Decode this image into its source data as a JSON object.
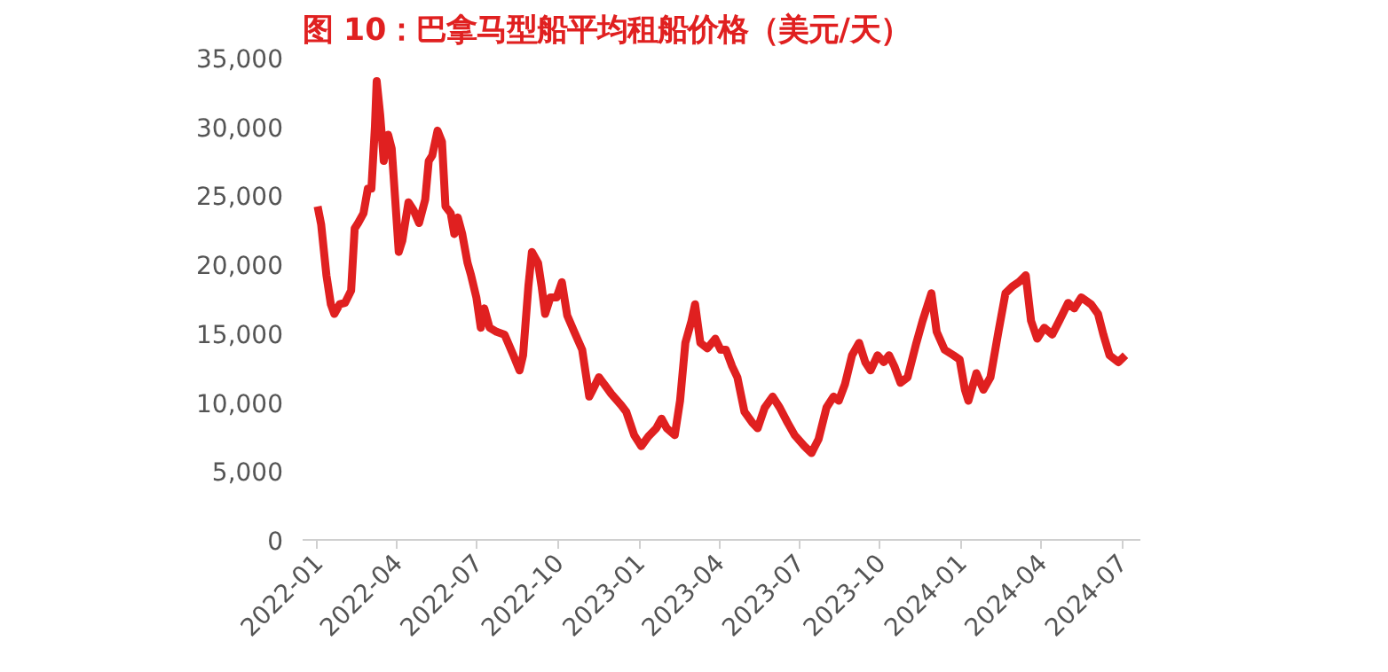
{
  "chart_data": {
    "type": "line",
    "title": "图 10：巴拿马型船平均租船价格（美元/天）",
    "x": [
      "2022-01-01",
      "2022-01-05",
      "2022-01-11",
      "2022-01-16",
      "2022-01-20",
      "2022-01-26",
      "2022-02-01",
      "2022-02-08",
      "2022-02-12",
      "2022-02-16",
      "2022-02-22",
      "2022-02-27",
      "2022-03-03",
      "2022-03-07",
      "2022-03-09",
      "2022-03-13",
      "2022-03-17",
      "2022-03-22",
      "2022-03-26",
      "2022-03-30",
      "2022-04-03",
      "2022-04-07",
      "2022-04-14",
      "2022-04-20",
      "2022-04-26",
      "2022-05-03",
      "2022-05-07",
      "2022-05-11",
      "2022-05-17",
      "2022-05-22",
      "2022-05-26",
      "2022-06-01",
      "2022-06-05",
      "2022-06-09",
      "2022-06-14",
      "2022-06-20",
      "2022-06-24",
      "2022-06-30",
      "2022-07-05",
      "2022-07-09",
      "2022-07-15",
      "2022-07-23",
      "2022-08-01",
      "2022-08-11",
      "2022-08-18",
      "2022-08-22",
      "2022-08-28",
      "2022-09-01",
      "2022-09-08",
      "2022-09-12",
      "2022-09-16",
      "2022-09-22",
      "2022-09-29",
      "2022-10-05",
      "2022-10-11",
      "2022-10-19",
      "2022-10-28",
      "2022-11-01",
      "2022-11-05",
      "2022-11-09",
      "2022-11-16",
      "2022-11-22",
      "2022-11-30",
      "2022-12-11",
      "2022-12-17",
      "2022-12-26",
      "2023-01-03",
      "2023-01-11",
      "2023-01-20",
      "2023-01-26",
      "2023-02-01",
      "2023-02-10",
      "2023-02-16",
      "2023-02-22",
      "2023-03-01",
      "2023-03-05",
      "2023-03-11",
      "2023-03-19",
      "2023-03-28",
      "2023-04-03",
      "2023-04-09",
      "2023-04-16",
      "2023-04-22",
      "2023-04-30",
      "2023-05-09",
      "2023-05-15",
      "2023-05-23",
      "2023-06-01",
      "2023-06-09",
      "2023-06-18",
      "2023-06-26",
      "2023-07-07",
      "2023-07-15",
      "2023-07-23",
      "2023-08-01",
      "2023-08-09",
      "2023-08-15",
      "2023-08-22",
      "2023-08-30",
      "2023-09-07",
      "2023-09-14",
      "2023-09-20",
      "2023-09-28",
      "2023-10-05",
      "2023-10-11",
      "2023-10-17",
      "2023-10-24",
      "2023-11-01",
      "2023-11-11",
      "2023-11-18",
      "2023-11-28",
      "2023-12-04",
      "2023-12-13",
      "2023-12-23",
      "2023-12-30",
      "2024-01-05",
      "2024-01-09",
      "2024-01-18",
      "2024-01-26",
      "2024-02-03",
      "2024-02-12",
      "2024-02-20",
      "2024-02-28",
      "2024-03-06",
      "2024-03-14",
      "2024-03-20",
      "2024-03-27",
      "2024-04-04",
      "2024-04-13",
      "2024-04-21",
      "2024-05-01",
      "2024-05-08",
      "2024-05-16",
      "2024-05-27",
      "2024-06-04",
      "2024-06-10",
      "2024-06-17",
      "2024-06-27",
      "2024-07-05"
    ],
    "series": [
      {
        "color": "#e02020",
        "values": [
          24200,
          22900,
          19200,
          17100,
          16400,
          17100,
          17200,
          18100,
          22600,
          23000,
          23700,
          25500,
          25500,
          30000,
          33300,
          30800,
          27500,
          29400,
          28400,
          24700,
          20900,
          21700,
          24500,
          23900,
          23000,
          24700,
          27500,
          27900,
          29700,
          28900,
          24200,
          23700,
          22200,
          23400,
          22200,
          20100,
          19200,
          17600,
          15400,
          16800,
          15400,
          15100,
          14900,
          13400,
          12300,
          13400,
          18400,
          20900,
          20100,
          18400,
          16400,
          17600,
          17600,
          18700,
          16300,
          15100,
          13800,
          12100,
          10400,
          10900,
          11800,
          11300,
          10600,
          9800,
          9300,
          7600,
          6800,
          7500,
          8100,
          8800,
          8100,
          7600,
          10100,
          14300,
          15900,
          17100,
          14300,
          13900,
          14600,
          13800,
          13800,
          12600,
          11800,
          9300,
          8500,
          8100,
          9600,
          10400,
          9600,
          8500,
          7600,
          6800,
          6300,
          7300,
          9600,
          10400,
          10100,
          11300,
          13400,
          14300,
          12900,
          12300,
          13400,
          12900,
          13400,
          12600,
          11400,
          11800,
          14300,
          15900,
          17900,
          15100,
          13800,
          13400,
          13100,
          10900,
          10100,
          12100,
          10900,
          11800,
          15100,
          17900,
          18400,
          18700,
          19200,
          15900,
          14600,
          15400,
          14900,
          15900,
          17200,
          16800,
          17600,
          17100,
          16400,
          14900,
          13400,
          12900,
          13400
        ]
      }
    ],
    "xlim": [
      "2021-12-15",
      "2024-07-22"
    ],
    "xticks": [
      {
        "value": "2022-01-01",
        "label": "2022-01"
      },
      {
        "value": "2022-04-01",
        "label": "2022-04"
      },
      {
        "value": "2022-07-01",
        "label": "2022-07"
      },
      {
        "value": "2022-10-01",
        "label": "2022-10"
      },
      {
        "value": "2023-01-01",
        "label": "2023-01"
      },
      {
        "value": "2023-04-01",
        "label": "2023-04"
      },
      {
        "value": "2023-07-01",
        "label": "2023-07"
      },
      {
        "value": "2023-10-01",
        "label": "2023-10"
      },
      {
        "value": "2024-01-01",
        "label": "2024-01"
      },
      {
        "value": "2024-04-01",
        "label": "2024-04"
      },
      {
        "value": "2024-07-01",
        "label": "2024-07"
      }
    ],
    "ylim": [
      0,
      35000
    ],
    "yticks": [
      {
        "value": 0,
        "label": "0"
      },
      {
        "value": 5000,
        "label": "5,000"
      },
      {
        "value": 10000,
        "label": "10,000"
      },
      {
        "value": 15000,
        "label": "15,000"
      },
      {
        "value": 20000,
        "label": "20,000"
      },
      {
        "value": 25000,
        "label": "25,000"
      },
      {
        "value": 30000,
        "label": "30,000"
      },
      {
        "value": 35000,
        "label": "35,000"
      }
    ],
    "grid": false
  }
}
